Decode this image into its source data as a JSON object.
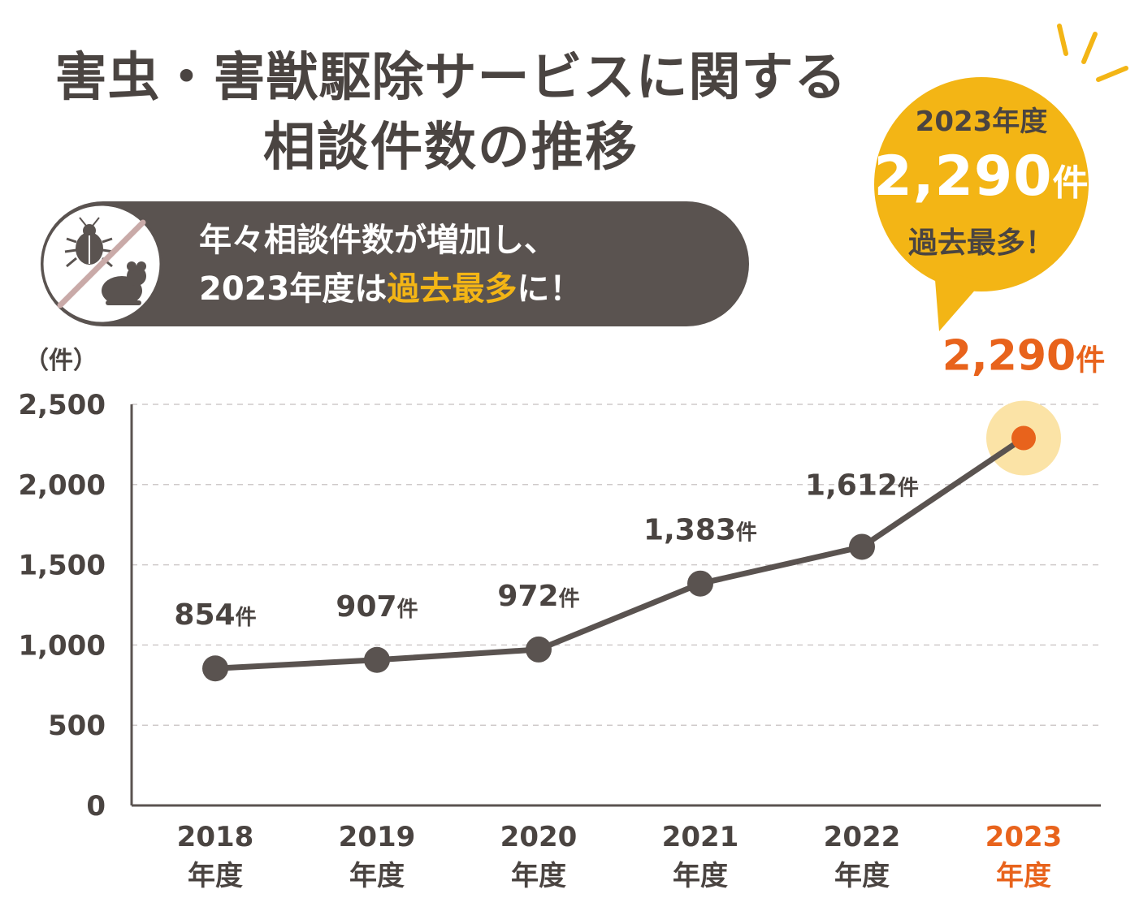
{
  "title": {
    "line1": "害虫・害獣駆除サービスに関する",
    "line2": "相談件数の推移"
  },
  "banner": {
    "line1": "年々相談件数が増加し、",
    "line2_prefix": "2023年度は",
    "line2_highlight": "過去最多",
    "line2_suffix": "に！",
    "icon": "no-pests-icon"
  },
  "callout": {
    "year": "2023年度",
    "count": "2,290",
    "unit": "件",
    "record": "過去最多！"
  },
  "colors": {
    "accent": "#e8631c",
    "bubble": "#f3b515",
    "line": "#5a5350",
    "text": "#4a4441",
    "halo": "#fbe3a6"
  },
  "chart_data": {
    "type": "line",
    "y_unit_label": "（件）",
    "categories": [
      "2018",
      "2019",
      "2020",
      "2021",
      "2022",
      "2023"
    ],
    "category_suffix": "年度",
    "values": [
      854,
      907,
      972,
      1383,
      1612,
      2290
    ],
    "data_labels": [
      "854",
      "907",
      "972",
      "1,383",
      "1,612",
      "2,290"
    ],
    "data_label_unit": "件",
    "ylim": [
      0,
      2500
    ],
    "yticks": [
      0,
      500,
      1000,
      1500,
      2000,
      2500
    ],
    "ytick_labels": [
      "0",
      "500",
      "1,000",
      "1,500",
      "2,000",
      "2,500"
    ],
    "grid": true,
    "highlight_index": 5
  }
}
